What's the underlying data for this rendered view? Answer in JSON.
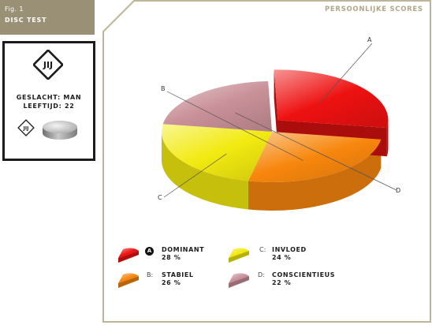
{
  "figure": {
    "number": "Fig. 1",
    "title": "DISC TEST"
  },
  "profile": {
    "logo_text": "JIJ",
    "gender_line": "GESLACHT: MAN",
    "age_line": "LEEFTIJD: 22",
    "small_logo_text": "JIJ"
  },
  "heading": "PERSOONLIJKE SCORES",
  "chart_data": {
    "type": "pie",
    "title": "PERSOONLIJKE SCORES",
    "exploded": "A",
    "slices": [
      {
        "letter": "A",
        "name": "DOMINANT",
        "value": 28,
        "color": "#ee1111"
      },
      {
        "letter": "B",
        "name": "STABIEL",
        "value": 26,
        "color": "#f7860d"
      },
      {
        "letter": "C",
        "name": "INVLOED",
        "value": 24,
        "color": "#f2ea10"
      },
      {
        "letter": "D",
        "name": "CONSCIENTIEUS",
        "value": 22,
        "color": "#c99098"
      }
    ],
    "unit": "%"
  },
  "legend": [
    {
      "letter": "A",
      "letter_display": "A:",
      "name": "DOMINANT",
      "value_text": "28 %",
      "color": "#ee1111"
    },
    {
      "letter": "C",
      "letter_display": "C:",
      "name": "INVLOED",
      "value_text": "24 %",
      "color": "#f2ea10"
    },
    {
      "letter": "B",
      "letter_display": "B:",
      "name": "STABIEL",
      "value_text": "26 %",
      "color": "#f7860d"
    },
    {
      "letter": "D",
      "letter_display": "D:",
      "name": "CONSCIENTIEUS",
      "value_text": "22 %",
      "color": "#c99098"
    }
  ],
  "colors": {
    "frame": "#bdb59a",
    "fig_box": "#9a9076",
    "heading": "#b0a68a"
  }
}
